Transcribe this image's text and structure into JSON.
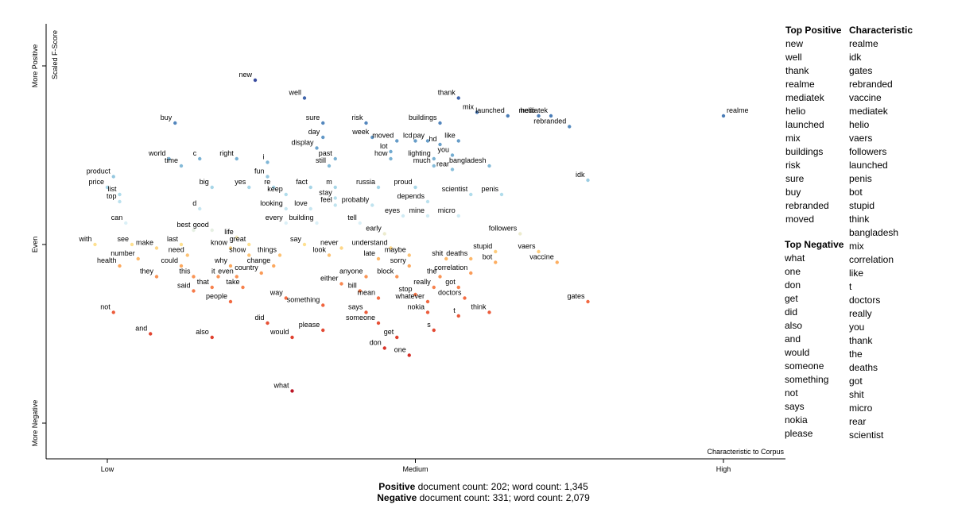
{
  "chart_data": {
    "type": "scatter",
    "xlabel": "Characteristic to Corpus",
    "ylabel": "Scaled F-Score",
    "x_ticks": [
      "Low",
      "Medium",
      "High"
    ],
    "y_ticks": [
      "More Positive",
      "Even",
      "More Negative"
    ],
    "xlim": [
      0,
      1
    ],
    "ylim": [
      0,
      1
    ],
    "points": [
      {
        "term": "new",
        "x": 0.24,
        "y": 0.96
      },
      {
        "term": "well",
        "x": 0.32,
        "y": 0.91
      },
      {
        "term": "thank",
        "x": 0.57,
        "y": 0.91
      },
      {
        "term": "mix",
        "x": 0.6,
        "y": 0.87
      },
      {
        "term": "launched",
        "x": 0.65,
        "y": 0.86
      },
      {
        "term": "helio",
        "x": 0.7,
        "y": 0.86
      },
      {
        "term": "mediatek",
        "x": 0.72,
        "y": 0.86
      },
      {
        "term": "rebranded",
        "x": 0.75,
        "y": 0.83
      },
      {
        "term": "realme",
        "x": 1.0,
        "y": 0.86
      },
      {
        "term": "buy",
        "x": 0.11,
        "y": 0.84
      },
      {
        "term": "sure",
        "x": 0.35,
        "y": 0.84
      },
      {
        "term": "risk",
        "x": 0.42,
        "y": 0.84
      },
      {
        "term": "buildings",
        "x": 0.54,
        "y": 0.84
      },
      {
        "term": "day",
        "x": 0.35,
        "y": 0.8
      },
      {
        "term": "week",
        "x": 0.43,
        "y": 0.8
      },
      {
        "term": "moved",
        "x": 0.47,
        "y": 0.79
      },
      {
        "term": "lcd",
        "x": 0.5,
        "y": 0.79
      },
      {
        "term": "pay",
        "x": 0.52,
        "y": 0.79
      },
      {
        "term": "like",
        "x": 0.57,
        "y": 0.79
      },
      {
        "term": "hd",
        "x": 0.54,
        "y": 0.78
      },
      {
        "term": "display",
        "x": 0.34,
        "y": 0.77
      },
      {
        "term": "lot",
        "x": 0.46,
        "y": 0.76
      },
      {
        "term": "you",
        "x": 0.56,
        "y": 0.75
      },
      {
        "term": "world",
        "x": 0.1,
        "y": 0.74
      },
      {
        "term": "c",
        "x": 0.15,
        "y": 0.74
      },
      {
        "term": "right",
        "x": 0.21,
        "y": 0.74
      },
      {
        "term": "past",
        "x": 0.37,
        "y": 0.74
      },
      {
        "term": "how",
        "x": 0.46,
        "y": 0.74
      },
      {
        "term": "lighting",
        "x": 0.53,
        "y": 0.74
      },
      {
        "term": "i",
        "x": 0.26,
        "y": 0.73
      },
      {
        "term": "time",
        "x": 0.12,
        "y": 0.72
      },
      {
        "term": "still",
        "x": 0.36,
        "y": 0.72
      },
      {
        "term": "much",
        "x": 0.53,
        "y": 0.72
      },
      {
        "term": "rear",
        "x": 0.56,
        "y": 0.71
      },
      {
        "term": "bangladesh",
        "x": 0.62,
        "y": 0.72
      },
      {
        "term": "product",
        "x": 0.01,
        "y": 0.69
      },
      {
        "term": "fun",
        "x": 0.26,
        "y": 0.69
      },
      {
        "term": "idk",
        "x": 0.78,
        "y": 0.68
      },
      {
        "term": "price",
        "x": 0.0,
        "y": 0.66
      },
      {
        "term": "big",
        "x": 0.17,
        "y": 0.66
      },
      {
        "term": "yes",
        "x": 0.23,
        "y": 0.66
      },
      {
        "term": "re",
        "x": 0.27,
        "y": 0.66
      },
      {
        "term": "fact",
        "x": 0.33,
        "y": 0.66
      },
      {
        "term": "m",
        "x": 0.37,
        "y": 0.66
      },
      {
        "term": "russia",
        "x": 0.44,
        "y": 0.66
      },
      {
        "term": "proud",
        "x": 0.5,
        "y": 0.66
      },
      {
        "term": "scientist",
        "x": 0.59,
        "y": 0.64
      },
      {
        "term": "penis",
        "x": 0.64,
        "y": 0.64
      },
      {
        "term": "list",
        "x": 0.02,
        "y": 0.64
      },
      {
        "term": "keep",
        "x": 0.29,
        "y": 0.64
      },
      {
        "term": "stay",
        "x": 0.37,
        "y": 0.63
      },
      {
        "term": "top",
        "x": 0.02,
        "y": 0.62
      },
      {
        "term": "depends",
        "x": 0.52,
        "y": 0.62
      },
      {
        "term": "d",
        "x": 0.15,
        "y": 0.6
      },
      {
        "term": "looking",
        "x": 0.29,
        "y": 0.6
      },
      {
        "term": "love",
        "x": 0.33,
        "y": 0.6
      },
      {
        "term": "feel",
        "x": 0.37,
        "y": 0.61
      },
      {
        "term": "probably",
        "x": 0.43,
        "y": 0.61
      },
      {
        "term": "eyes",
        "x": 0.48,
        "y": 0.58
      },
      {
        "term": "mine",
        "x": 0.52,
        "y": 0.58
      },
      {
        "term": "micro",
        "x": 0.57,
        "y": 0.58
      },
      {
        "term": "can",
        "x": 0.03,
        "y": 0.56
      },
      {
        "term": "every",
        "x": 0.29,
        "y": 0.56
      },
      {
        "term": "building",
        "x": 0.34,
        "y": 0.56
      },
      {
        "term": "tell",
        "x": 0.41,
        "y": 0.56
      },
      {
        "term": "early",
        "x": 0.45,
        "y": 0.53
      },
      {
        "term": "followers",
        "x": 0.67,
        "y": 0.53
      },
      {
        "term": "best",
        "x": 0.14,
        "y": 0.54
      },
      {
        "term": "good",
        "x": 0.17,
        "y": 0.54
      },
      {
        "term": "life",
        "x": 0.21,
        "y": 0.52
      },
      {
        "term": "with",
        "x": -0.02,
        "y": 0.5
      },
      {
        "term": "see",
        "x": 0.04,
        "y": 0.5
      },
      {
        "term": "make",
        "x": 0.08,
        "y": 0.49
      },
      {
        "term": "last",
        "x": 0.12,
        "y": 0.5
      },
      {
        "term": "know",
        "x": 0.2,
        "y": 0.49
      },
      {
        "term": "great",
        "x": 0.23,
        "y": 0.5
      },
      {
        "term": "say",
        "x": 0.32,
        "y": 0.5
      },
      {
        "term": "never",
        "x": 0.38,
        "y": 0.49
      },
      {
        "term": "understand",
        "x": 0.46,
        "y": 0.49
      },
      {
        "term": "stupid",
        "x": 0.63,
        "y": 0.48
      },
      {
        "term": "vaers",
        "x": 0.7,
        "y": 0.48
      },
      {
        "term": "need",
        "x": 0.13,
        "y": 0.47
      },
      {
        "term": "show",
        "x": 0.23,
        "y": 0.47
      },
      {
        "term": "things",
        "x": 0.28,
        "y": 0.47
      },
      {
        "term": "look",
        "x": 0.36,
        "y": 0.47
      },
      {
        "term": "maybe",
        "x": 0.49,
        "y": 0.47
      },
      {
        "term": "number",
        "x": 0.05,
        "y": 0.46
      },
      {
        "term": "late",
        "x": 0.44,
        "y": 0.46
      },
      {
        "term": "shit",
        "x": 0.55,
        "y": 0.46
      },
      {
        "term": "deaths",
        "x": 0.59,
        "y": 0.46
      },
      {
        "term": "vaccine",
        "x": 0.73,
        "y": 0.45
      },
      {
        "term": "bot",
        "x": 0.63,
        "y": 0.45
      },
      {
        "term": "health",
        "x": 0.02,
        "y": 0.44
      },
      {
        "term": "could",
        "x": 0.12,
        "y": 0.44
      },
      {
        "term": "why",
        "x": 0.2,
        "y": 0.44
      },
      {
        "term": "change",
        "x": 0.27,
        "y": 0.44
      },
      {
        "term": "sorry",
        "x": 0.49,
        "y": 0.44
      },
      {
        "term": "country",
        "x": 0.25,
        "y": 0.42
      },
      {
        "term": "correlation",
        "x": 0.59,
        "y": 0.42
      },
      {
        "term": "they",
        "x": 0.08,
        "y": 0.41
      },
      {
        "term": "this",
        "x": 0.14,
        "y": 0.41
      },
      {
        "term": "it",
        "x": 0.18,
        "y": 0.41
      },
      {
        "term": "even",
        "x": 0.21,
        "y": 0.41
      },
      {
        "term": "anyone",
        "x": 0.42,
        "y": 0.41
      },
      {
        "term": "block",
        "x": 0.47,
        "y": 0.41
      },
      {
        "term": "the",
        "x": 0.54,
        "y": 0.41
      },
      {
        "term": "either",
        "x": 0.38,
        "y": 0.39
      },
      {
        "term": "that",
        "x": 0.17,
        "y": 0.38
      },
      {
        "term": "take",
        "x": 0.22,
        "y": 0.38
      },
      {
        "term": "really",
        "x": 0.53,
        "y": 0.38
      },
      {
        "term": "got",
        "x": 0.57,
        "y": 0.38
      },
      {
        "term": "said",
        "x": 0.14,
        "y": 0.37
      },
      {
        "term": "bill",
        "x": 0.41,
        "y": 0.37
      },
      {
        "term": "way",
        "x": 0.29,
        "y": 0.35
      },
      {
        "term": "stop",
        "x": 0.5,
        "y": 0.36
      },
      {
        "term": "mean",
        "x": 0.44,
        "y": 0.35
      },
      {
        "term": "doctors",
        "x": 0.58,
        "y": 0.35
      },
      {
        "term": "people",
        "x": 0.2,
        "y": 0.34
      },
      {
        "term": "something",
        "x": 0.35,
        "y": 0.33
      },
      {
        "term": "whatever",
        "x": 0.52,
        "y": 0.34
      },
      {
        "term": "gates",
        "x": 0.78,
        "y": 0.34
      },
      {
        "term": "not",
        "x": 0.01,
        "y": 0.31
      },
      {
        "term": "says",
        "x": 0.42,
        "y": 0.31
      },
      {
        "term": "nokia",
        "x": 0.52,
        "y": 0.31
      },
      {
        "term": "t",
        "x": 0.57,
        "y": 0.3
      },
      {
        "term": "think",
        "x": 0.62,
        "y": 0.31
      },
      {
        "term": "did",
        "x": 0.26,
        "y": 0.28
      },
      {
        "term": "someone",
        "x": 0.44,
        "y": 0.28
      },
      {
        "term": "please",
        "x": 0.35,
        "y": 0.26
      },
      {
        "term": "s",
        "x": 0.53,
        "y": 0.26
      },
      {
        "term": "and",
        "x": 0.07,
        "y": 0.25
      },
      {
        "term": "also",
        "x": 0.17,
        "y": 0.24
      },
      {
        "term": "would",
        "x": 0.3,
        "y": 0.24
      },
      {
        "term": "get",
        "x": 0.47,
        "y": 0.24
      },
      {
        "term": "don",
        "x": 0.45,
        "y": 0.21
      },
      {
        "term": "one",
        "x": 0.49,
        "y": 0.19
      },
      {
        "term": "what",
        "x": 0.3,
        "y": 0.09
      }
    ]
  },
  "lists": {
    "top_positive_header": "Top Positive",
    "top_positive": [
      "new",
      "well",
      "thank",
      "realme",
      "mediatek",
      "helio",
      "launched",
      "mix",
      "buildings",
      "risk",
      "sure",
      "buy",
      "rebranded",
      "moved"
    ],
    "top_negative_header": "Top Negative",
    "top_negative": [
      "what",
      "one",
      "don",
      "get",
      "did",
      "also",
      "and",
      "would",
      "someone",
      "something",
      "not",
      "says",
      "nokia",
      "please"
    ],
    "characteristic_header": "Characteristic",
    "characteristic": [
      "realme",
      "idk",
      "gates",
      "rebranded",
      "vaccine",
      "mediatek",
      "helio",
      "vaers",
      "followers",
      "launched",
      "penis",
      "bot",
      "stupid",
      "think",
      "bangladesh",
      "mix",
      "correlation",
      "like",
      "t",
      "doctors",
      "really",
      "you",
      "thank",
      "the",
      "deaths",
      "got",
      "shit",
      "micro",
      "rear",
      "scientist"
    ]
  },
  "footer": {
    "positive_label": "Positive",
    "positive_text": " document count: 202; word count: 1,345",
    "negative_label": "Negative",
    "negative_text": " document count: 331; word count: 2,079"
  }
}
